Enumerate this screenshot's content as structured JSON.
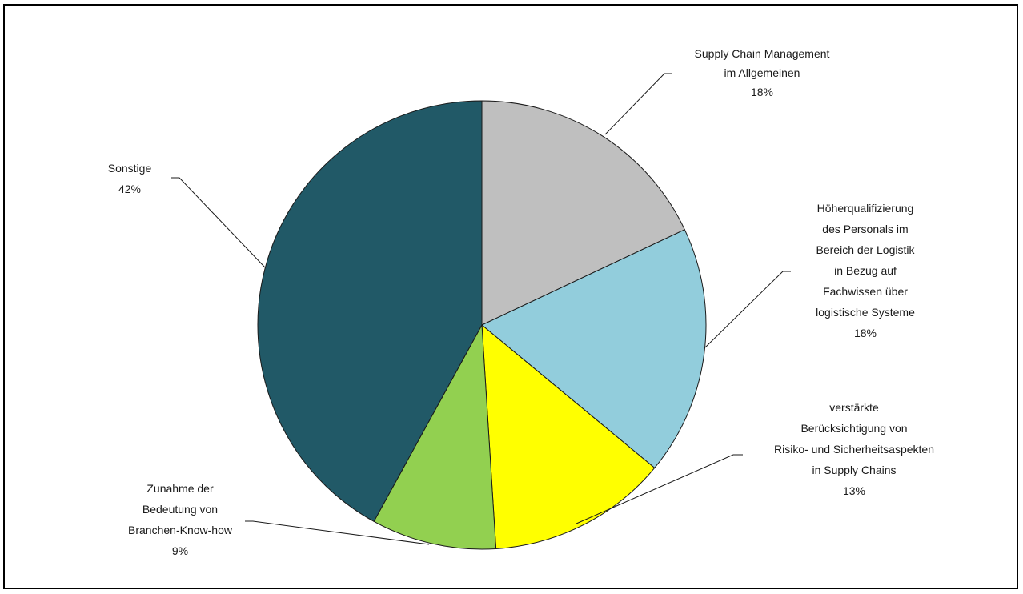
{
  "chart_data": {
    "type": "pie",
    "title": "",
    "start_angle_deg": 0,
    "direction": "clockwise",
    "slices": [
      {
        "label_lines": [
          "Supply Chain Management",
          "im Allgemeinen"
        ],
        "value": 18,
        "value_label": "18%",
        "color": "#BFBFBF"
      },
      {
        "label_lines": [
          "Höherqualifizierung",
          "des Personals im",
          "Bereich der Logistik",
          "in Bezug auf",
          "Fachwissen über",
          "logistische Systeme"
        ],
        "value": 18,
        "value_label": "18%",
        "color": "#92CDDC"
      },
      {
        "label_lines": [
          "verstärkte",
          "Berücksichtigung von",
          "Risiko- und Sicherheitsaspekten",
          "in Supply Chains"
        ],
        "value": 13,
        "value_label": "13%",
        "color": "#FFFF00"
      },
      {
        "label_lines": [
          "Zunahme der",
          "Bedeutung von",
          "Branchen-Know-how"
        ],
        "value": 9,
        "value_label": "9%",
        "color": "#92D050"
      },
      {
        "label_lines": [
          "Sonstige"
        ],
        "value": 42,
        "value_label": "42%",
        "color": "#215967"
      }
    ]
  }
}
